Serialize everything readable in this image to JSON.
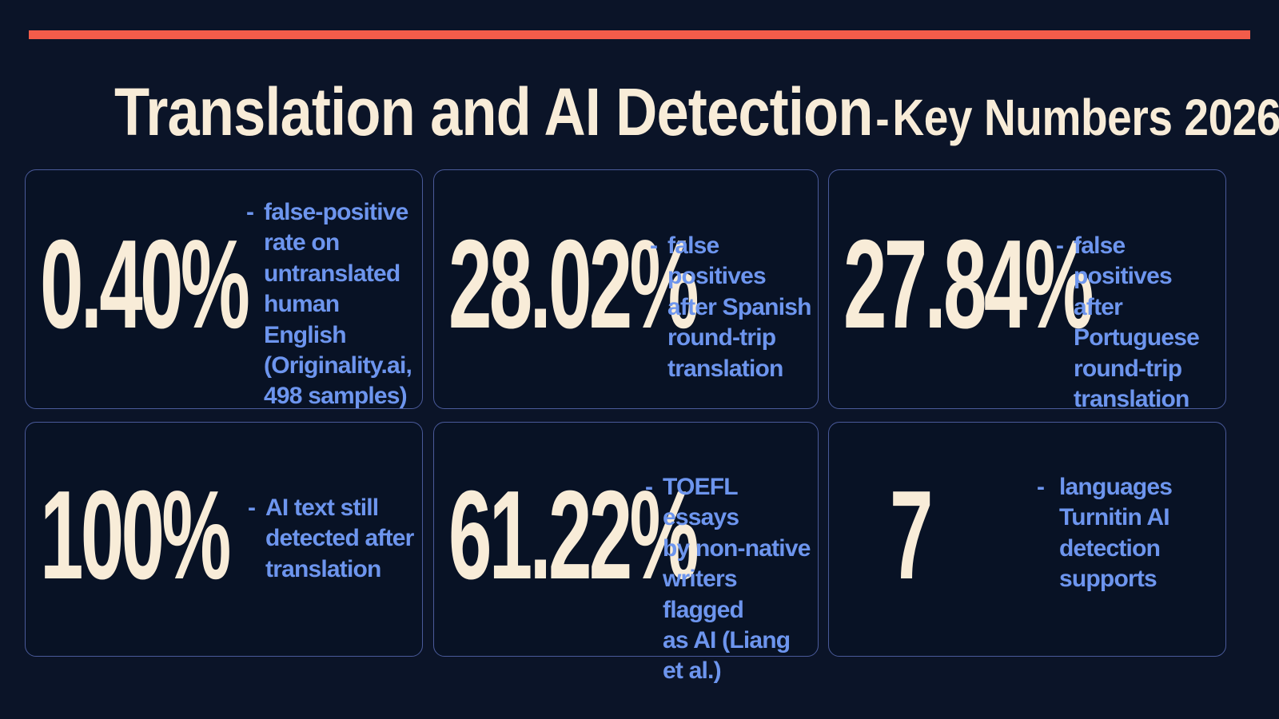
{
  "header": {
    "title": "Translation and AI Detection",
    "separator": "-",
    "subtitle": "Key Numbers 2026",
    "accent_color": "#f25c4a"
  },
  "stats": [
    {
      "value": "0.40%",
      "dash": "-",
      "lines": [
        "false-positive",
        "rate on",
        "untranslated",
        "human English",
        "(Originality.ai,",
        "498 samples)"
      ]
    },
    {
      "value": "28.02%",
      "dash": "-",
      "lines": [
        "false positives",
        "after Spanish",
        "round-trip",
        "translation"
      ]
    },
    {
      "value": "27.84%",
      "dash": "-",
      "lines": [
        "false positives",
        "after Portuguese",
        "round-trip",
        "translation"
      ]
    },
    {
      "value": "100%",
      "dash": "-",
      "lines": [
        "AI text still",
        "detected after",
        "translation"
      ]
    },
    {
      "value": "61.22%",
      "dash": "-",
      "lines": [
        "TOEFL essays",
        "by non-native",
        "writers flagged",
        "as AI (Liang et al.)"
      ]
    },
    {
      "value": "7",
      "dash": "-",
      "lines": [
        "languages",
        "Turnitin AI",
        "detection",
        "supports"
      ]
    }
  ],
  "colors": {
    "background": "#0b1428",
    "number": "#f8ecd8",
    "description": "#6d95ee",
    "card_border": "#4a5a9a"
  }
}
